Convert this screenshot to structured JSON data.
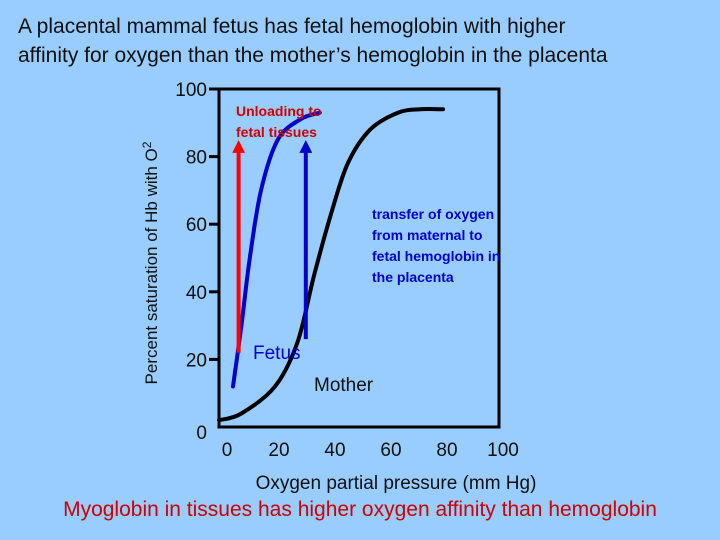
{
  "title_lines": [
    "A placental mammal fetus has fetal hemoglobin with higher",
    "affinity for oxygen than the mother’s hemoglobin in the placenta"
  ],
  "footer": "Myoglobin in tissues has higher oxygen affinity than hemoglobin",
  "colors": {
    "background": "#99ccff",
    "fetus": "#0000cc",
    "mother": "#000000",
    "arrow_red": "#ff0000",
    "arrow_blue": "#0000cc",
    "footer": "#cc0000"
  },
  "chart_data": {
    "type": "line",
    "xlabel": "Oxygen partial pressure (mm Hg)",
    "ylabel_main": "Percent saturation of Hb with O",
    "ylabel_sub": "2",
    "xlim": [
      0,
      100
    ],
    "ylim": [
      0,
      100
    ],
    "x_ticks": [
      0,
      20,
      40,
      60,
      80,
      100
    ],
    "y_ticks": [
      0,
      20,
      40,
      60,
      80,
      100
    ],
    "grid": false,
    "series": [
      {
        "name": "Fetus",
        "color": "#0000cc",
        "points": [
          [
            5,
            12
          ],
          [
            8,
            30
          ],
          [
            11,
            50
          ],
          [
            15,
            70
          ],
          [
            21,
            85
          ],
          [
            29,
            91
          ],
          [
            36,
            93
          ]
        ]
      },
      {
        "name": "Mother",
        "color": "#000000",
        "points": [
          [
            0,
            2
          ],
          [
            8,
            4
          ],
          [
            20,
            12
          ],
          [
            28,
            25
          ],
          [
            34,
            45
          ],
          [
            40,
            63
          ],
          [
            46,
            78
          ],
          [
            54,
            88
          ],
          [
            64,
            93
          ],
          [
            72,
            94
          ],
          [
            80,
            94
          ]
        ]
      }
    ],
    "annotations": {
      "unloading": [
        "Unloading to",
        "fetal tissues"
      ],
      "transfer": [
        "transfer of oxygen",
        "from maternal to",
        "fetal hemoglobin in",
        "the placenta"
      ]
    },
    "arrows": [
      {
        "color": "#ff0000",
        "x": 7,
        "y_from": 22,
        "y_to": 83
      },
      {
        "color": "#0000cc",
        "x": 31,
        "y_from": 26,
        "y_to": 83
      }
    ]
  }
}
